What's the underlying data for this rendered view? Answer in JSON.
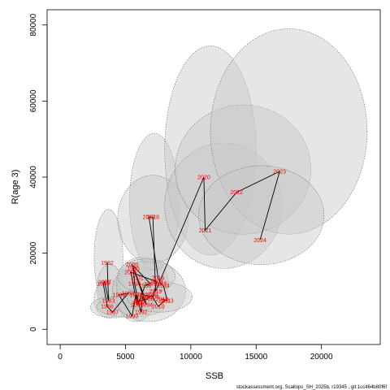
{
  "chart_data": {
    "type": "scatter",
    "xlabel": "SSB",
    "ylabel": "R(age 3)",
    "xlim": [
      -1000,
      24500
    ],
    "ylim": [
      -4000,
      84000
    ],
    "xticks": [
      0,
      5000,
      10000,
      15000,
      20000
    ],
    "yticks": [
      0,
      20000,
      40000,
      60000,
      80000
    ],
    "grid": false,
    "legend": "none",
    "colors": {
      "label": "#ff0000",
      "path": "#000000",
      "ellipse_fill": "#c8c8c8",
      "ellipse_stroke": "#6e6e6e"
    },
    "points": [
      {
        "year": "1982",
        "x": 3600,
        "y": 17500
      },
      {
        "year": "1983",
        "x": 3700,
        "y": 7500
      },
      {
        "year": "1984",
        "x": 3400,
        "y": 12500
      },
      {
        "year": "1985",
        "x": 3300,
        "y": 12000
      },
      {
        "year": "1986",
        "x": 3600,
        "y": 6000
      },
      {
        "year": "1987",
        "x": 4000,
        "y": 4500
      },
      {
        "year": "1988",
        "x": 5200,
        "y": 9500
      },
      {
        "year": "1989",
        "x": 4500,
        "y": 9000
      },
      {
        "year": "1990",
        "x": 5500,
        "y": 3500
      },
      {
        "year": "1991",
        "x": 5800,
        "y": 9000
      },
      {
        "year": "1992",
        "x": 6200,
        "y": 4500
      },
      {
        "year": "1993",
        "x": 6300,
        "y": 8500
      },
      {
        "year": "1994",
        "x": 6600,
        "y": 6500
      },
      {
        "year": "1995",
        "x": 5600,
        "y": 16000
      },
      {
        "year": "1996",
        "x": 5700,
        "y": 12000
      },
      {
        "year": "1997",
        "x": 6000,
        "y": 7000
      },
      {
        "year": "1998",
        "x": 6500,
        "y": 11500
      },
      {
        "year": "1999",
        "x": 6900,
        "y": 12000
      },
      {
        "year": "2000",
        "x": 5500,
        "y": 17000
      },
      {
        "year": "2001",
        "x": 5900,
        "y": 13500
      },
      {
        "year": "2002",
        "x": 6400,
        "y": 9000
      },
      {
        "year": "2003",
        "x": 7100,
        "y": 8500
      },
      {
        "year": "2004",
        "x": 7400,
        "y": 12500
      },
      {
        "year": "2005",
        "x": 5400,
        "y": 15000
      },
      {
        "year": "2006",
        "x": 5900,
        "y": 6500
      },
      {
        "year": "2007",
        "x": 6100,
        "y": 7500
      },
      {
        "year": "2008",
        "x": 6700,
        "y": 8000
      },
      {
        "year": "2009",
        "x": 7000,
        "y": 9000
      },
      {
        "year": "2010",
        "x": 7500,
        "y": 6000
      },
      {
        "year": "2011",
        "x": 8000,
        "y": 7500
      },
      {
        "year": "2012",
        "x": 7800,
        "y": 8000
      },
      {
        "year": "2013",
        "x": 8200,
        "y": 7500
      },
      {
        "year": "2014",
        "x": 7900,
        "y": 11500
      },
      {
        "year": "2015",
        "x": 7700,
        "y": 12000
      },
      {
        "year": "2016",
        "x": 7500,
        "y": 13500
      },
      {
        "year": "2017",
        "x": 6800,
        "y": 29500
      },
      {
        "year": "2018",
        "x": 7100,
        "y": 29500
      },
      {
        "year": "2019",
        "x": 7300,
        "y": 10000
      },
      {
        "year": "2020",
        "x": 11000,
        "y": 40000
      },
      {
        "year": "2021",
        "x": 11100,
        "y": 26000
      },
      {
        "year": "2022",
        "x": 13500,
        "y": 36000
      },
      {
        "year": "2023",
        "x": 16800,
        "y": 41500
      },
      {
        "year": "2024",
        "x": 15300,
        "y": 23500
      }
    ],
    "ellipses": [
      {
        "cx": 3700,
        "cy": 19000,
        "rx": 1100,
        "ry": 12500,
        "rot": 0
      },
      {
        "cx": 3800,
        "cy": 11000,
        "rx": 1000,
        "ry": 6000,
        "rot": 0
      },
      {
        "cx": 3700,
        "cy": 8000,
        "rx": 1100,
        "ry": 5000,
        "rot": 0
      },
      {
        "cx": 4100,
        "cy": 5800,
        "rx": 1800,
        "ry": 2800,
        "rot": 0
      },
      {
        "cx": 5400,
        "cy": 6000,
        "rx": 2600,
        "ry": 2800,
        "rot": 0
      },
      {
        "cx": 5800,
        "cy": 9500,
        "rx": 1500,
        "ry": 7500,
        "rot": 0
      },
      {
        "cx": 6300,
        "cy": 12000,
        "rx": 2000,
        "ry": 7000,
        "rot": 0
      },
      {
        "cx": 6800,
        "cy": 10000,
        "rx": 2800,
        "ry": 8000,
        "rot": 0
      },
      {
        "cx": 7200,
        "cy": 33500,
        "rx": 1900,
        "ry": 18000,
        "rot": 0
      },
      {
        "cx": 7100,
        "cy": 29000,
        "rx": 2700,
        "ry": 11500,
        "rot": 0
      },
      {
        "cx": 7600,
        "cy": 8500,
        "rx": 2500,
        "ry": 4000,
        "rot": 0
      },
      {
        "cx": 6600,
        "cy": 14000,
        "rx": 2200,
        "ry": 4500,
        "rot": 0
      },
      {
        "cx": 11500,
        "cy": 47000,
        "rx": 3500,
        "ry": 27500,
        "rot": 0
      },
      {
        "cx": 12500,
        "cy": 32500,
        "rx": 4500,
        "ry": 16500,
        "rot": 0
      },
      {
        "cx": 14000,
        "cy": 42000,
        "rx": 5200,
        "ry": 17000,
        "rot": 0
      },
      {
        "cx": 17500,
        "cy": 52000,
        "rx": 6000,
        "ry": 27000,
        "rot": 0
      },
      {
        "cx": 15400,
        "cy": 30000,
        "rx": 4800,
        "ry": 13000,
        "rot": 0
      }
    ]
  },
  "footer_text": "stockassessment.org, Scallops_SH_2025b, r19345 , git:1cc464b80f6f"
}
